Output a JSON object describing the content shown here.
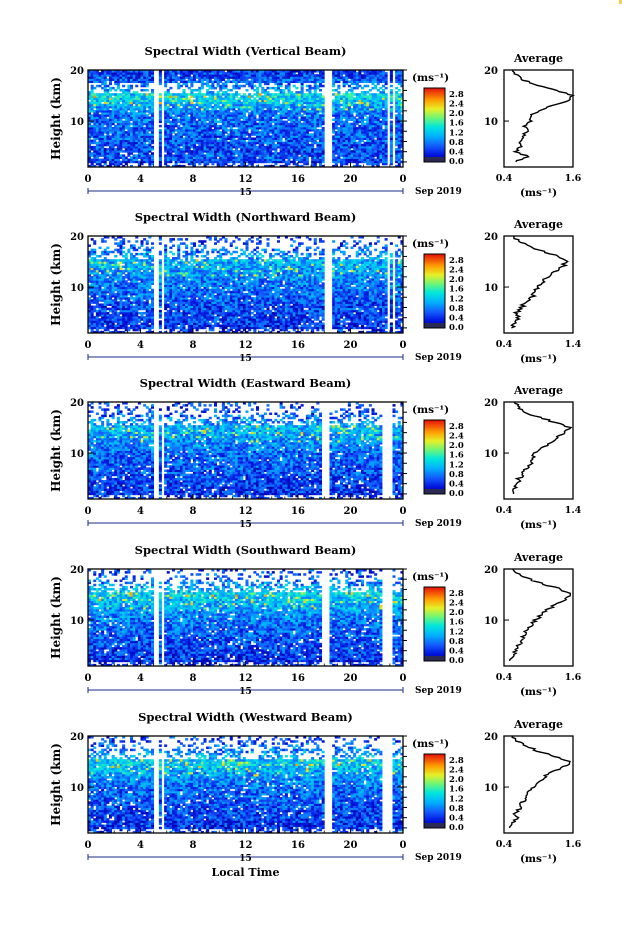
{
  "figure": {
    "date_label": "Sep 2019",
    "day_label": "15",
    "xlabel": "Local Time",
    "ylabel": "Height (km)",
    "unit_label": "(ms⁻¹)",
    "avg_xlabel": "(ms⁻¹)",
    "avg_title": "Average"
  },
  "chart_data": [
    {
      "type": "heatmap",
      "title": "Spectral Width (Vertical Beam)",
      "xlabel": "",
      "ylabel": "Height (km)",
      "x_ticks": [
        "0",
        "4",
        "8",
        "12",
        "16",
        "20",
        "0"
      ],
      "y_ticks": [
        "10",
        "20"
      ],
      "xlim": [
        0,
        24
      ],
      "ylim": [
        1,
        20
      ],
      "colorbar": {
        "label": "(ms⁻¹)",
        "ticks": [
          "0.0",
          "0.4",
          "0.8",
          "1.2",
          "1.6",
          "2.0",
          "2.4",
          "2.8"
        ],
        "range": [
          0,
          3.0
        ]
      },
      "data_gaps_hours": [
        [
          5.0,
          5.3
        ],
        [
          5.6,
          5.85
        ],
        [
          18.1,
          18.55
        ],
        [
          22.8,
          23.0
        ],
        [
          23.25,
          23.45
        ]
      ],
      "profile": {
        "title": "Average",
        "xlabel": "(ms⁻¹)",
        "x_ticks": [
          "0.4",
          "1.6"
        ],
        "xlim": [
          0.4,
          1.6
        ],
        "y_ticks": [
          "10",
          "20"
        ],
        "ylim": [
          1,
          20
        ],
        "heights_km": [
          2,
          3,
          4,
          5,
          6,
          7,
          8,
          9,
          10,
          11,
          12,
          13,
          14,
          15,
          16,
          17,
          18,
          19,
          20
        ],
        "values": [
          0.58,
          0.82,
          0.6,
          0.68,
          0.7,
          0.74,
          0.8,
          0.75,
          0.88,
          0.85,
          1.0,
          1.25,
          1.5,
          1.62,
          1.3,
          0.95,
          0.75,
          0.62,
          0.55
        ]
      }
    },
    {
      "type": "heatmap",
      "title": "Spectral Width (Northward Beam)",
      "xlabel": "",
      "ylabel": "Height (km)",
      "x_ticks": [
        "0",
        "4",
        "8",
        "12",
        "16",
        "20",
        "0"
      ],
      "y_ticks": [
        "10",
        "20"
      ],
      "xlim": [
        0,
        24
      ],
      "ylim": [
        1,
        20
      ],
      "colorbar": {
        "label": "(ms⁻¹)",
        "ticks": [
          "0.0",
          "0.4",
          "0.8",
          "1.2",
          "1.6",
          "2.0",
          "2.4",
          "2.8"
        ],
        "range": [
          0,
          3.0
        ]
      },
      "data_gaps_hours": [
        [
          5.0,
          5.3
        ],
        [
          5.6,
          5.85
        ],
        [
          18.1,
          18.55
        ],
        [
          22.8,
          23.0
        ],
        [
          23.25,
          23.45
        ]
      ],
      "profile": {
        "title": "Average",
        "xlabel": "(ms⁻¹)",
        "x_ticks": [
          "0.4",
          "1.4"
        ],
        "xlim": [
          0.4,
          1.4
        ],
        "y_ticks": [
          "10",
          "20"
        ],
        "ylim": [
          1,
          20
        ],
        "heights_km": [
          2,
          3,
          4,
          5,
          6,
          7,
          8,
          9,
          10,
          11,
          12,
          13,
          14,
          15,
          16,
          17,
          18,
          19,
          20
        ],
        "values": [
          0.5,
          0.55,
          0.62,
          0.58,
          0.66,
          0.7,
          0.8,
          0.85,
          0.9,
          0.95,
          1.05,
          1.15,
          1.25,
          1.3,
          1.2,
          0.95,
          0.75,
          0.6,
          0.55
        ]
      }
    },
    {
      "type": "heatmap",
      "title": "Spectral Width (Eastward Beam)",
      "xlabel": "",
      "ylabel": "Height (km)",
      "x_ticks": [
        "0",
        "4",
        "8",
        "12",
        "16",
        "20",
        "0"
      ],
      "y_ticks": [
        "10",
        "20"
      ],
      "xlim": [
        0,
        24
      ],
      "ylim": [
        1,
        20
      ],
      "colorbar": {
        "label": "(ms⁻¹)",
        "ticks": [
          "0.0",
          "0.4",
          "0.8",
          "1.2",
          "1.6",
          "2.0",
          "2.4",
          "2.8"
        ],
        "range": [
          0,
          3.0
        ]
      },
      "data_gaps_hours": [
        [
          5.0,
          5.3
        ],
        [
          5.6,
          5.85
        ],
        [
          17.8,
          18.4
        ],
        [
          22.5,
          22.7
        ],
        [
          22.9,
          23.1
        ]
      ],
      "profile": {
        "title": "Average",
        "xlabel": "(ms⁻¹)",
        "x_ticks": [
          "0.4",
          "1.4"
        ],
        "xlim": [
          0.4,
          1.4
        ],
        "y_ticks": [
          "10",
          "20"
        ],
        "ylim": [
          1,
          20
        ],
        "heights_km": [
          2,
          3,
          4,
          5,
          6,
          7,
          8,
          9,
          10,
          11,
          12,
          13,
          14,
          15,
          16,
          17,
          18,
          19,
          20
        ],
        "values": [
          0.5,
          0.55,
          0.6,
          0.62,
          0.68,
          0.72,
          0.78,
          0.8,
          0.85,
          0.95,
          1.05,
          1.15,
          1.3,
          1.35,
          1.15,
          0.9,
          0.7,
          0.6,
          0.55
        ]
      }
    },
    {
      "type": "heatmap",
      "title": "Spectral Width (Southward Beam)",
      "xlabel": "",
      "ylabel": "Height (km)",
      "x_ticks": [
        "0",
        "4",
        "8",
        "12",
        "16",
        "20",
        "0"
      ],
      "y_ticks": [
        "10",
        "20"
      ],
      "xlim": [
        0,
        24
      ],
      "ylim": [
        1,
        20
      ],
      "colorbar": {
        "label": "(ms⁻¹)",
        "ticks": [
          "0.0",
          "0.4",
          "0.8",
          "1.2",
          "1.6",
          "2.0",
          "2.4",
          "2.8"
        ],
        "range": [
          0,
          3.0
        ]
      },
      "data_gaps_hours": [
        [
          5.0,
          5.3
        ],
        [
          5.6,
          5.85
        ],
        [
          17.8,
          18.4
        ],
        [
          22.5,
          22.7
        ],
        [
          22.9,
          23.1
        ]
      ],
      "profile": {
        "title": "Average",
        "xlabel": "(ms⁻¹)",
        "x_ticks": [
          "0.4",
          "1.6"
        ],
        "xlim": [
          0.4,
          1.6
        ],
        "y_ticks": [
          "10",
          "20"
        ],
        "ylim": [
          1,
          20
        ],
        "heights_km": [
          2,
          3,
          4,
          5,
          6,
          7,
          8,
          9,
          10,
          11,
          12,
          13,
          14,
          15,
          16,
          17,
          18,
          19,
          20
        ],
        "values": [
          0.5,
          0.55,
          0.6,
          0.65,
          0.7,
          0.75,
          0.8,
          0.88,
          0.95,
          1.05,
          1.15,
          1.3,
          1.45,
          1.55,
          1.4,
          1.1,
          0.85,
          0.65,
          0.55
        ]
      }
    },
    {
      "type": "heatmap",
      "title": "Spectral Width (Westward Beam)",
      "xlabel": "Local Time",
      "ylabel": "Height (km)",
      "x_ticks": [
        "0",
        "4",
        "8",
        "12",
        "16",
        "20",
        "0"
      ],
      "y_ticks": [
        "10",
        "20"
      ],
      "xlim": [
        0,
        24
      ],
      "ylim": [
        1,
        20
      ],
      "colorbar": {
        "label": "(ms⁻¹)",
        "ticks": [
          "0.0",
          "0.4",
          "0.8",
          "1.2",
          "1.6",
          "2.0",
          "2.4",
          "2.8"
        ],
        "range": [
          0,
          3.0
        ]
      },
      "data_gaps_hours": [
        [
          5.0,
          5.3
        ],
        [
          5.6,
          5.85
        ],
        [
          18.1,
          18.55
        ],
        [
          22.5,
          22.7
        ],
        [
          22.9,
          23.1
        ]
      ],
      "profile": {
        "title": "Average",
        "xlabel": "(ms⁻¹)",
        "x_ticks": [
          "0.4",
          "1.6"
        ],
        "xlim": [
          0.4,
          1.6
        ],
        "y_ticks": [
          "10",
          "20"
        ],
        "ylim": [
          1,
          20
        ],
        "heights_km": [
          2,
          3,
          4,
          5,
          6,
          7,
          8,
          9,
          10,
          11,
          12,
          13,
          14,
          15,
          16,
          17,
          18,
          19,
          20
        ],
        "values": [
          0.5,
          0.55,
          0.62,
          0.6,
          0.68,
          0.72,
          0.78,
          0.82,
          0.9,
          1.0,
          1.1,
          1.25,
          1.45,
          1.55,
          1.3,
          1.0,
          0.8,
          0.62,
          0.55
        ]
      }
    }
  ]
}
